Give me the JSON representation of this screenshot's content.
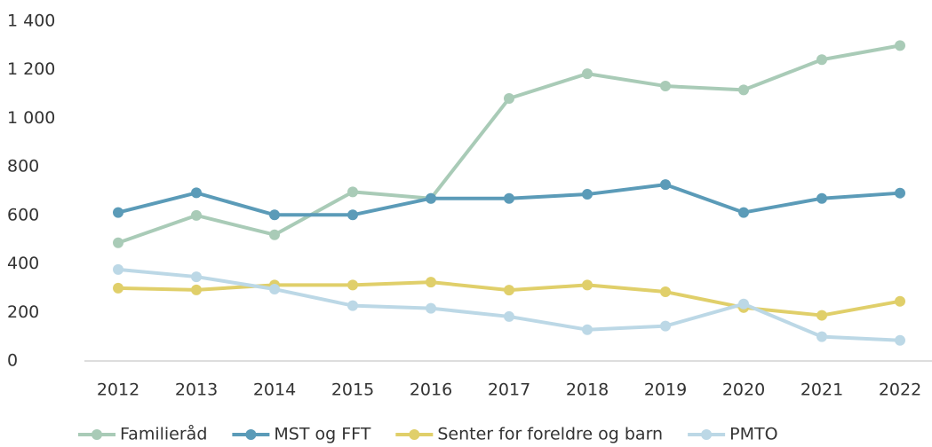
{
  "chart_data": {
    "type": "line",
    "categories": [
      "2012",
      "2013",
      "2014",
      "2015",
      "2016",
      "2017",
      "2018",
      "2019",
      "2020",
      "2021",
      "2022"
    ],
    "series": [
      {
        "name": "Familieråd",
        "color": "#a9cbb7",
        "values": [
          487,
          600,
          520,
          697,
          670,
          1082,
          1184,
          1133,
          1117,
          1242,
          1300
        ]
      },
      {
        "name": "MST og FFT",
        "color": "#5b9bb8",
        "values": [
          612,
          693,
          602,
          602,
          670,
          670,
          687,
          727,
          612,
          670,
          692
        ]
      },
      {
        "name": "Senter for foreldre og barn",
        "color": "#e0cf6a",
        "values": [
          300,
          293,
          313,
          313,
          325,
          292,
          313,
          285,
          220,
          188,
          246
        ]
      },
      {
        "name": "PMTO",
        "color": "#bcd8e6",
        "values": [
          377,
          347,
          296,
          228,
          217,
          183,
          129,
          144,
          235,
          100,
          85
        ]
      }
    ],
    "ylim": [
      0,
      1400
    ],
    "yticks": [
      0,
      200,
      400,
      600,
      800,
      {
        "value": 1000,
        "label": "1 000"
      },
      {
        "value": 1200,
        "label": "1 200"
      },
      {
        "value": 1400,
        "label": "1 400"
      }
    ],
    "legend": "bottom"
  }
}
